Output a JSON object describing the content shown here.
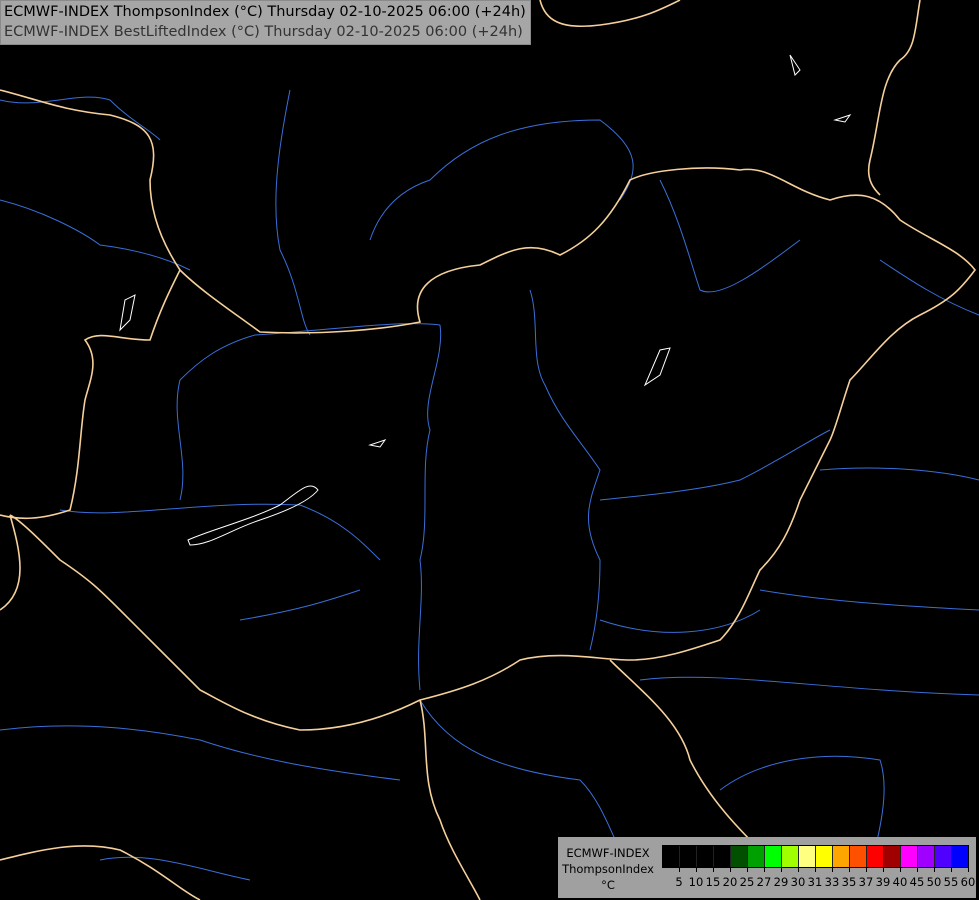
{
  "header": {
    "line1": "ECMWF-INDEX ThompsonIndex (°C) Thursday 02-10-2025 06:00 (+24h)",
    "line2": "ECMWF-INDEX BestLiftedIndex (°C) Thursday 02-10-2025 06:00 (+24h)"
  },
  "legend": {
    "source": "ECMWF-INDEX",
    "parameter": "ThompsonIndex",
    "unit": "°C",
    "colors": [
      "#000000",
      "#000000",
      "#000000",
      "#000000",
      "#005000",
      "#00a000",
      "#00ff00",
      "#a0ff00",
      "#ffff80",
      "#ffff00",
      "#ffa500",
      "#ff5000",
      "#ff0000",
      "#a00000",
      "#ff00ff",
      "#a000ff",
      "#5000ff",
      "#0000ff"
    ],
    "labels": [
      "5",
      "10",
      "15",
      "20",
      "25",
      "27",
      "29",
      "30",
      "31",
      "33",
      "35",
      "37",
      "39",
      "40",
      "45",
      "50",
      "55",
      "60"
    ]
  },
  "map_colors": {
    "border": "#f5d09a",
    "river": "#3a6fd8",
    "lake": "#ffffff",
    "background": "#000000"
  }
}
